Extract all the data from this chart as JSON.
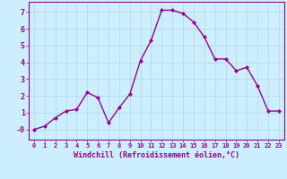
{
  "x": [
    0,
    1,
    2,
    3,
    4,
    5,
    6,
    7,
    8,
    9,
    10,
    11,
    12,
    13,
    14,
    15,
    16,
    17,
    18,
    19,
    20,
    21,
    22,
    23
  ],
  "y": [
    -0.0,
    0.2,
    0.7,
    1.1,
    1.2,
    2.2,
    1.9,
    0.4,
    1.3,
    2.1,
    4.1,
    5.3,
    7.1,
    7.1,
    6.9,
    6.4,
    5.5,
    4.2,
    4.2,
    3.5,
    3.7,
    2.6,
    1.1,
    1.1
  ],
  "line_color": "#990099",
  "marker": "D",
  "marker_size": 2,
  "bg_color": "#cceeff",
  "grid_color": "#b0d8e8",
  "xlabel": "Windchill (Refroidissement éolien,°C)",
  "xlim": [
    -0.5,
    23.5
  ],
  "ylim": [
    -0.6,
    7.6
  ],
  "xticks": [
    0,
    1,
    2,
    3,
    4,
    5,
    6,
    7,
    8,
    9,
    10,
    11,
    12,
    13,
    14,
    15,
    16,
    17,
    18,
    19,
    20,
    21,
    22,
    23
  ],
  "yticks": [
    0,
    1,
    2,
    3,
    4,
    5,
    6,
    7
  ],
  "ytick_labels": [
    "-0",
    "1",
    "2",
    "3",
    "4",
    "5",
    "6",
    "7"
  ],
  "tick_color": "#990099",
  "label_color": "#990099",
  "axis_color": "#990099",
  "font_name": "monospace",
  "xtick_fontsize": 5,
  "ytick_fontsize": 6,
  "xlabel_fontsize": 6,
  "linewidth": 1.0
}
